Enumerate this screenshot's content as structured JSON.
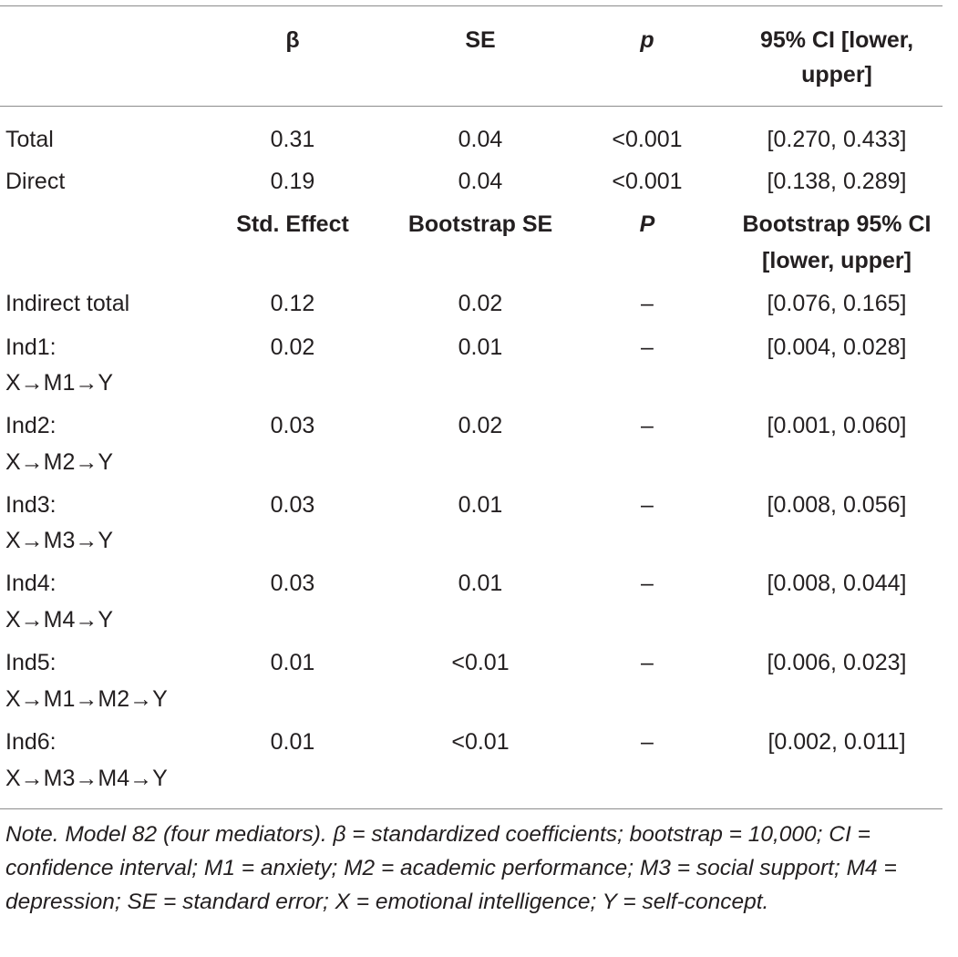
{
  "header": {
    "col1": "",
    "col2": "β",
    "col3": "SE",
    "col4": "p",
    "col5_line1": "95% CI [lower,",
    "col5_line2": "upper]"
  },
  "rows_direct": [
    {
      "label": "Total",
      "beta": "0.31",
      "se": "0.04",
      "p": "<0.001",
      "ci": "[0.270, 0.433]"
    },
    {
      "label": "Direct",
      "beta": "0.19",
      "se": "0.04",
      "p": "<0.001",
      "ci": "[0.138, 0.289]"
    }
  ],
  "subheader": {
    "col2": "Std. Effect",
    "col3": "Bootstrap SE",
    "col4": "P",
    "col5_line1": "Bootstrap 95% CI",
    "col5_line2": "[lower, upper]"
  },
  "rows_indirect": [
    {
      "label1": "Indirect total",
      "label2": "",
      "effect": "0.12",
      "se": "0.02",
      "p": "–",
      "ci": "[0.076, 0.165]"
    },
    {
      "label1": "Ind1:",
      "label2": "X→M1→Y",
      "effect": "0.02",
      "se": "0.01",
      "p": "–",
      "ci": "[0.004, 0.028]"
    },
    {
      "label1": "Ind2:",
      "label2": "X→M2→Y",
      "effect": "0.03",
      "se": "0.02",
      "p": "–",
      "ci": "[0.001, 0.060]"
    },
    {
      "label1": "Ind3:",
      "label2": "X→M3→Y",
      "effect": "0.03",
      "se": "0.01",
      "p": "–",
      "ci": "[0.008, 0.056]"
    },
    {
      "label1": "Ind4:",
      "label2": "X→M4→Y",
      "effect": "0.03",
      "se": "0.01",
      "p": "–",
      "ci": "[0.008, 0.044]"
    },
    {
      "label1": "Ind5:",
      "label2": "X→M1→M2→Y",
      "effect": "0.01",
      "se": "<0.01",
      "p": "–",
      "ci": "[0.006, 0.023]"
    },
    {
      "label1": "Ind6:",
      "label2": "X→M3→M4→Y",
      "effect": "0.01",
      "se": "<0.01",
      "p": "–",
      "ci": "[0.002, 0.011]"
    }
  ],
  "note": "Note. Model 82 (four mediators). β = standardized coefficients; bootstrap = 10,000; CI = confidence interval; M1 = anxiety; M2 = academic performance; M3 = social support; M4 = depression; SE = standard error; X = emotional intelligence; Y = self-concept."
}
